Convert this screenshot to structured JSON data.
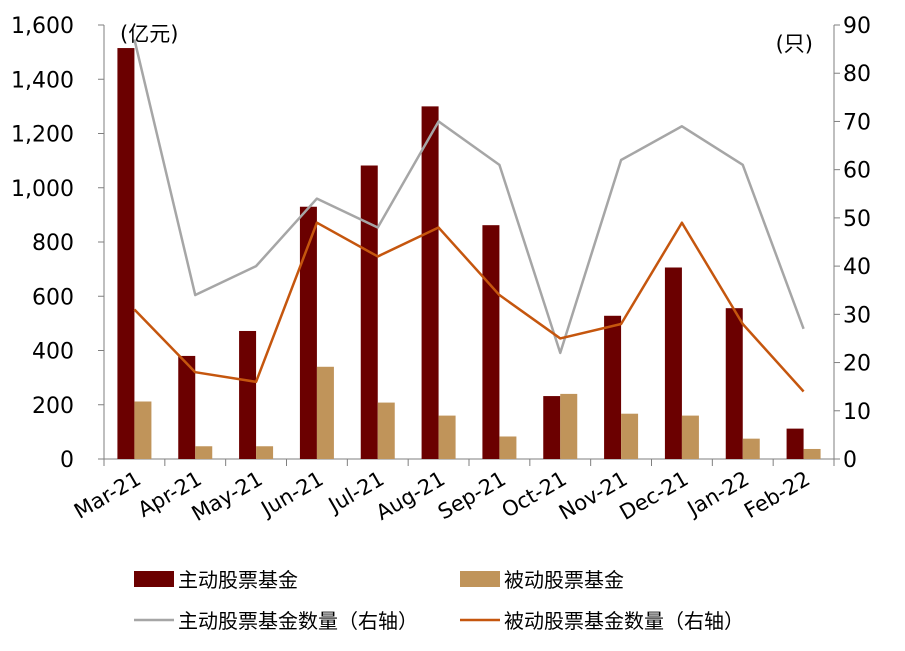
{
  "chart_data": {
    "type": "bar",
    "categories": [
      "Mar-21",
      "Apr-21",
      "May-21",
      "Jun-21",
      "Jul-21",
      "Aug-21",
      "Sep-21",
      "Oct-21",
      "Nov-21",
      "Dec-21",
      "Jan-22",
      "Feb-22"
    ],
    "left_unit": "(亿元)",
    "right_unit": "(只)",
    "ylim": [
      0,
      1600
    ],
    "y2lim": [
      0,
      90
    ],
    "yticks": [
      "0",
      "200",
      "400",
      "600",
      "800",
      "1,000",
      "1,200",
      "1,400",
      "1,600"
    ],
    "y2ticks": [
      "0",
      "10",
      "20",
      "30",
      "40",
      "50",
      "60",
      "70",
      "80",
      "90"
    ],
    "series": [
      {
        "name": "主动股票基金",
        "kind": "bar",
        "axis": "left",
        "color": "#6b0000",
        "values": [
          1515,
          380,
          472,
          930,
          1082,
          1300,
          862,
          232,
          528,
          706,
          556,
          112
        ]
      },
      {
        "name": "被动股票基金",
        "kind": "bar",
        "axis": "left",
        "color": "#c0945a",
        "values": [
          212,
          47,
          47,
          340,
          208,
          160,
          83,
          240,
          167,
          160,
          75,
          37
        ]
      },
      {
        "name": "主动股票基金数量（右轴）",
        "kind": "line",
        "axis": "right",
        "color": "#a6a6a6",
        "values": [
          87,
          34,
          40,
          54,
          48,
          70,
          61,
          22,
          62,
          69,
          61,
          27
        ]
      },
      {
        "name": "被动股票基金数量（右轴）",
        "kind": "line",
        "axis": "right",
        "color": "#c5560e",
        "values": [
          31,
          18,
          16,
          49,
          42,
          48,
          34,
          25,
          28,
          49,
          28,
          14
        ]
      }
    ],
    "legend_position": "bottom",
    "grid": false
  }
}
